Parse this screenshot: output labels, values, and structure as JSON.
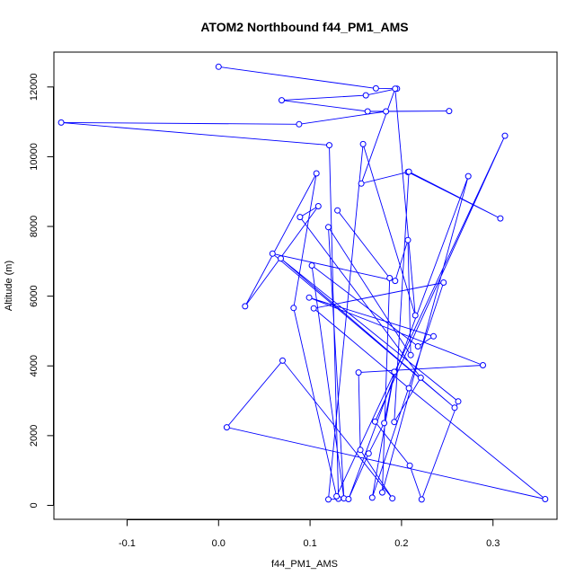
{
  "chart_data": {
    "type": "line",
    "title": "ATOM2 Northbound f44_PM1_AMS",
    "xlabel": "f44_PM1_AMS",
    "ylabel": "Altitude (m)",
    "xlim": [
      -0.18,
      0.37
    ],
    "ylim": [
      -400,
      13000
    ],
    "x_ticks": [
      -0.1,
      0.0,
      0.1,
      0.2,
      0.3
    ],
    "x_tick_labels": [
      "-0.1",
      "0.0",
      "0.1",
      "0.2",
      "0.3"
    ],
    "y_ticks": [
      0,
      2000,
      4000,
      6000,
      8000,
      10000,
      12000
    ],
    "y_tick_labels": [
      "0",
      "2000",
      "4000",
      "6000",
      "8000",
      "10000",
      "12000"
    ],
    "line_color": "#0000ff",
    "marker": "open-circle",
    "grid": false,
    "series": [
      {
        "points": [
          [
            0.0,
            12580
          ],
          [
            0.172,
            11960
          ],
          [
            0.195,
            11950
          ],
          [
            0.161,
            11760
          ],
          [
            0.069,
            11620
          ],
          [
            0.163,
            11300
          ],
          [
            0.252,
            11310
          ],
          [
            0.183,
            11300
          ],
          [
            0.088,
            10930
          ],
          [
            -0.172,
            10980
          ],
          [
            0.121,
            10330
          ],
          [
            0.131,
            190
          ],
          [
            0.12,
            170
          ],
          [
            0.158,
            10360
          ],
          [
            0.215,
            5450
          ],
          [
            0.193,
            11950
          ],
          [
            0.156,
            9230
          ],
          [
            0.207,
            9560
          ],
          [
            0.308,
            8230
          ],
          [
            0.208,
            9570
          ],
          [
            0.192,
            2390
          ],
          [
            0.221,
            3660
          ],
          [
            0.089,
            8270
          ],
          [
            0.109,
            8580
          ],
          [
            0.029,
            5710
          ],
          [
            0.107,
            9520
          ],
          [
            0.082,
            5660
          ],
          [
            0.129,
            260
          ],
          [
            0.313,
            10600
          ],
          [
            0.171,
            2400
          ],
          [
            0.209,
            1140
          ],
          [
            0.222,
            170
          ],
          [
            0.262,
            2980
          ],
          [
            0.068,
            7080
          ],
          [
            0.258,
            2800
          ],
          [
            0.059,
            7220
          ],
          [
            0.193,
            6440
          ],
          [
            0.207,
            7610
          ],
          [
            0.21,
            4310
          ],
          [
            0.12,
            7980
          ],
          [
            0.137,
            200
          ],
          [
            0.102,
            6880
          ],
          [
            0.218,
            4560
          ],
          [
            0.235,
            4850
          ],
          [
            0.099,
            5960
          ],
          [
            0.289,
            4020
          ],
          [
            0.153,
            3810
          ],
          [
            0.155,
            1590
          ],
          [
            0.19,
            200
          ],
          [
            0.07,
            4150
          ],
          [
            0.009,
            2240
          ],
          [
            0.357,
            180
          ],
          [
            0.208,
            3360
          ],
          [
            0.104,
            5650
          ],
          [
            0.246,
            6390
          ],
          [
            0.168,
            220
          ],
          [
            0.192,
            3830
          ],
          [
            0.181,
            2360
          ],
          [
            0.164,
            1490
          ],
          [
            0.142,
            180
          ],
          [
            0.273,
            9440
          ],
          [
            0.179,
            370
          ],
          [
            0.187,
            6520
          ],
          [
            0.13,
            8460
          ]
        ]
      }
    ]
  }
}
